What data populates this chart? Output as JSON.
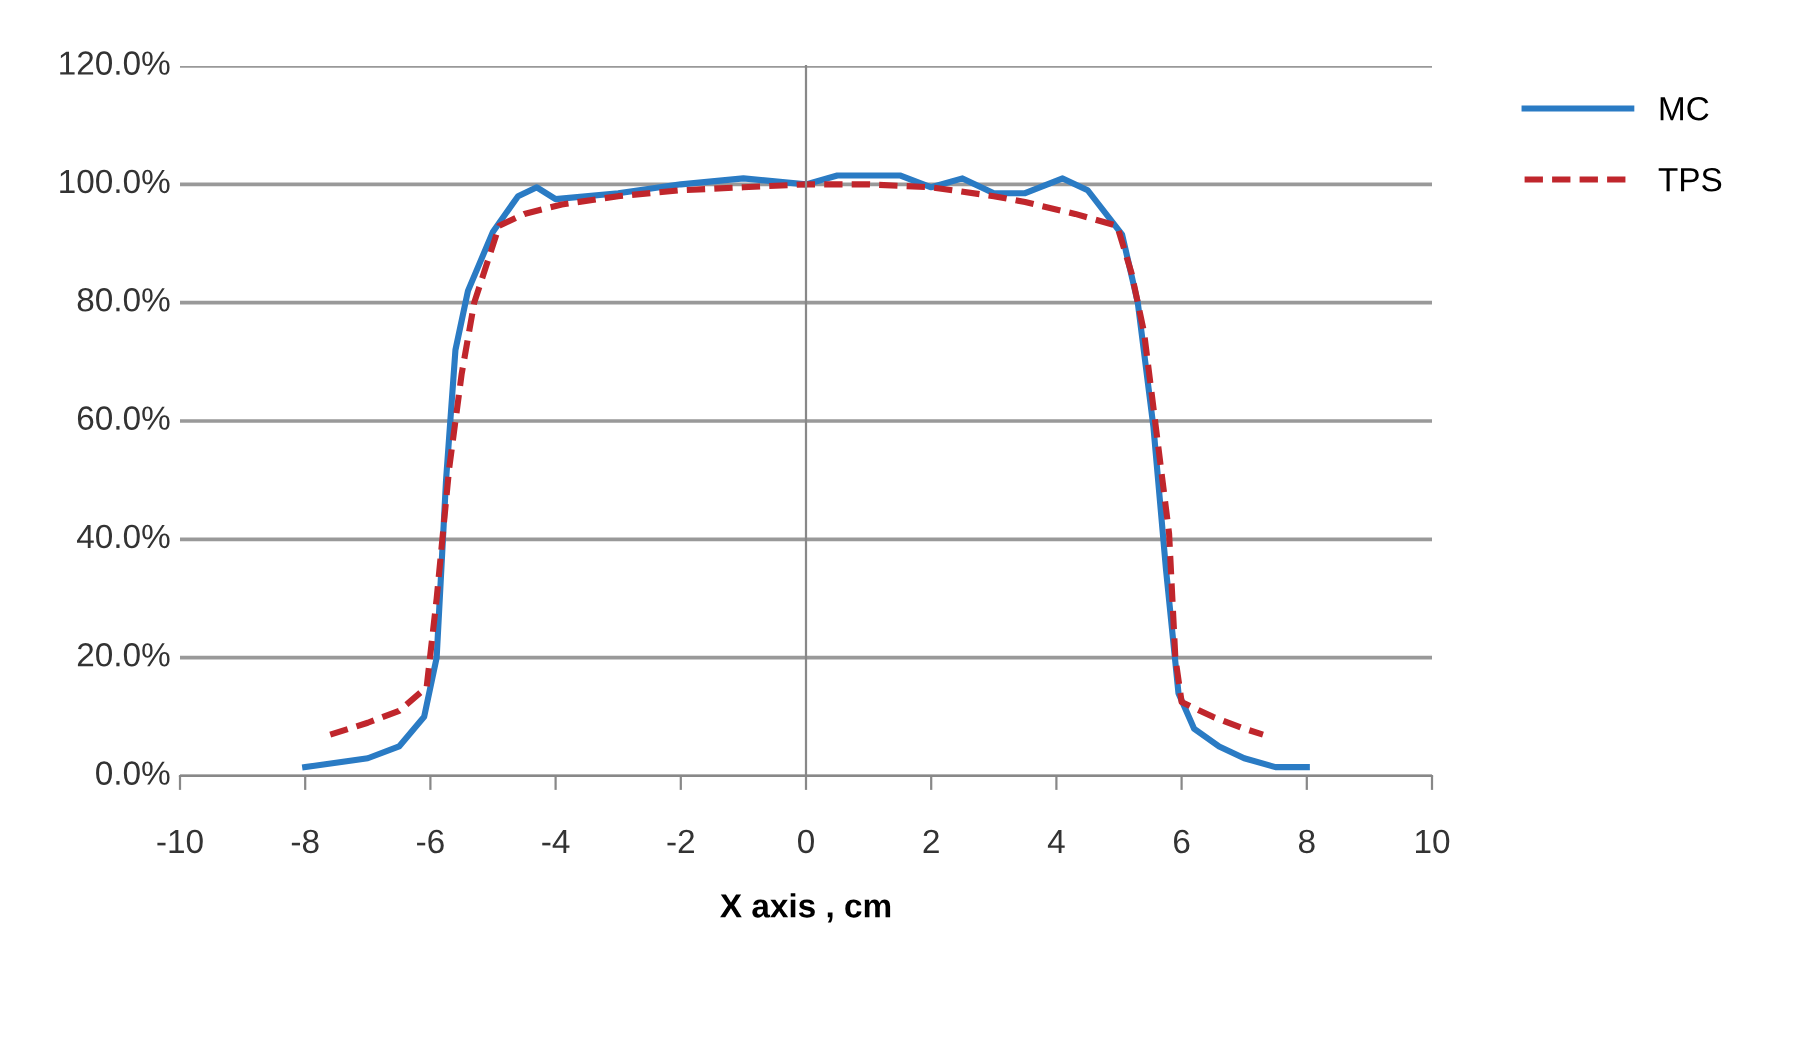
{
  "chart_data": {
    "type": "line",
    "xlabel": "X axis , cm",
    "xlim": [
      -10,
      10
    ],
    "xticks": [
      -10,
      -8,
      -6,
      -4,
      -2,
      0,
      2,
      4,
      6,
      8,
      10
    ],
    "ylim": [
      0,
      120
    ],
    "yticks": [
      {
        "value": 0,
        "label": "0.0%"
      },
      {
        "value": 20,
        "label": "20.0%"
      },
      {
        "value": 40,
        "label": "40.0%"
      },
      {
        "value": 60,
        "label": "60.0%"
      },
      {
        "value": 80,
        "label": "80.0%"
      },
      {
        "value": 100,
        "label": "100.0%"
      },
      {
        "value": 120,
        "label": "120.0%"
      }
    ],
    "grid": "y",
    "legend": "top right",
    "series": [
      {
        "name": "MC",
        "color": "#2a7bc4",
        "line_style": "solid",
        "x": [
          -8,
          -7,
          -6.5,
          -6.1,
          -5.9,
          -5.75,
          -5.6,
          -5.4,
          -5,
          -4.6,
          -4.3,
          -4,
          -3,
          -2,
          -1,
          0,
          0.5,
          1.5,
          2,
          2.5,
          3,
          3.5,
          4.1,
          4.5,
          5.05,
          5.3,
          5.55,
          5.75,
          5.95,
          6.2,
          6.6,
          7,
          7.5,
          8
        ],
        "values": [
          1.5,
          3,
          5,
          10,
          20,
          50,
          72,
          82,
          92,
          98,
          99.5,
          97.5,
          98.5,
          100,
          101,
          100,
          101.5,
          101.5,
          99.5,
          101,
          98.5,
          98.5,
          101,
          99,
          91.5,
          80,
          59,
          35,
          14,
          8,
          5,
          3,
          1.5,
          1.5
        ]
      },
      {
        "name": "TPS",
        "color": "#c0262c",
        "line_style": "dashed",
        "x": [
          -7.6,
          -7,
          -6.5,
          -6.06,
          -5.9,
          -5.7,
          -5.5,
          -5.3,
          -4.9,
          -4.5,
          -3.9,
          -3,
          -2,
          -1,
          0,
          1,
          2,
          3,
          3.5,
          4.3,
          4.97,
          5.2,
          5.4,
          5.6,
          5.8,
          5.9,
          6,
          6.5,
          7,
          7.3
        ],
        "values": [
          7,
          9,
          11,
          15,
          30,
          52,
          68,
          80,
          93,
          95,
          96.6,
          98,
          99,
          99.5,
          100,
          100,
          99.5,
          98,
          97,
          95,
          93,
          85,
          75,
          58,
          41,
          20,
          12.5,
          10,
          8,
          7
        ]
      }
    ]
  }
}
